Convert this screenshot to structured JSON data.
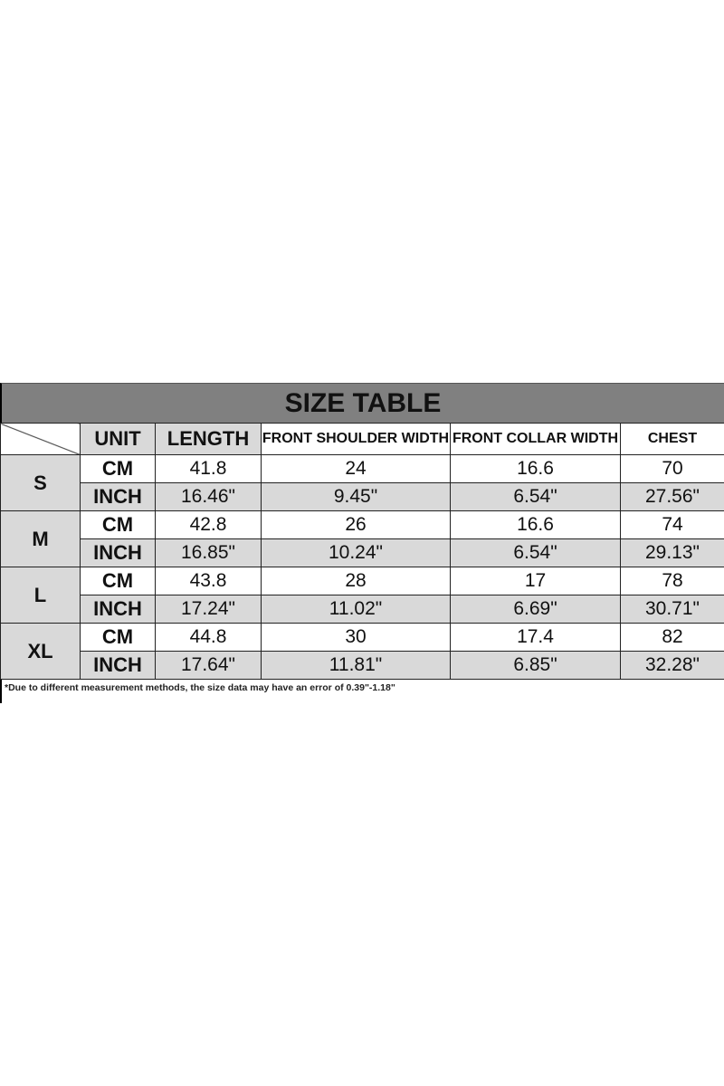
{
  "title": "SIZE TABLE",
  "headers": [
    "UNIT",
    "LENGTH",
    "FRONT SHOULDER WIDTH",
    "FRONT COLLAR WIDTH",
    "CHEST"
  ],
  "rows": [
    {
      "size": "S",
      "cm": [
        "CM",
        "41.8",
        "24",
        "16.6",
        "70"
      ],
      "inch": [
        "INCH",
        "16.46\"",
        "9.45\"",
        "6.54\"",
        "27.56\""
      ]
    },
    {
      "size": "M",
      "cm": [
        "CM",
        "42.8",
        "26",
        "16.6",
        "74"
      ],
      "inch": [
        "INCH",
        "16.85\"",
        "10.24\"",
        "6.54\"",
        "29.13\""
      ]
    },
    {
      "size": "L",
      "cm": [
        "CM",
        "43.8",
        "28",
        "17",
        "78"
      ],
      "inch": [
        "INCH",
        "17.24\"",
        "11.02\"",
        "6.69\"",
        "30.71\""
      ]
    },
    {
      "size": "XL",
      "cm": [
        "CM",
        "44.8",
        "30",
        "17.4",
        "82"
      ],
      "inch": [
        "INCH",
        "17.64\"",
        "11.81\"",
        "6.85\"",
        "32.28\""
      ]
    }
  ],
  "note": "*Due to different measurement methods, the size data may have an error of 0.39\"-1.18\""
}
